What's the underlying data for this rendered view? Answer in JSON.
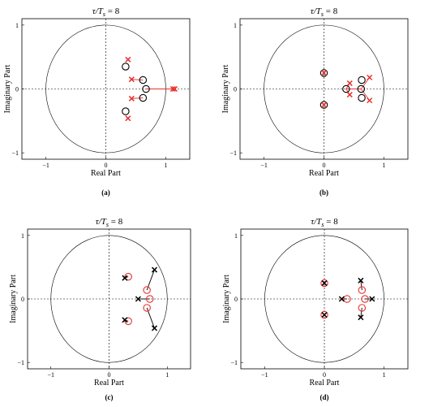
{
  "chart_data": [
    {
      "type": "scatter",
      "panel": "(a)",
      "title_prefix": "τ/T",
      "title_sub": "s",
      "title_suffix": " = 8",
      "xlabel": "Real Part",
      "ylabel": "Imaginary Part",
      "xlim": [
        -1.4,
        1.4
      ],
      "ylim": [
        -1.1,
        1.1
      ],
      "xticks": [
        -1,
        0,
        1
      ],
      "yticks": [
        -1,
        0,
        1
      ],
      "zero_color": "#000000",
      "pole_color": "#e8312f",
      "zeros": [
        [
          0.33,
          0.35
        ],
        [
          0.33,
          -0.35
        ],
        [
          0.62,
          0.14
        ],
        [
          0.62,
          -0.14
        ],
        [
          0.67,
          0.0
        ]
      ],
      "poles": [
        [
          0.37,
          0.46
        ],
        [
          0.37,
          -0.46
        ],
        [
          0.43,
          0.15
        ],
        [
          0.43,
          -0.15
        ],
        [
          1.12,
          0.0
        ],
        [
          1.15,
          0.0
        ]
      ],
      "links": [
        [
          [
            0.62,
            0.14
          ],
          [
            0.43,
            0.15
          ]
        ],
        [
          [
            0.62,
            -0.14
          ],
          [
            0.43,
            -0.15
          ]
        ],
        [
          [
            0.67,
            0.0
          ],
          [
            1.12,
            0.0
          ]
        ]
      ]
    },
    {
      "type": "scatter",
      "panel": "(b)",
      "title_prefix": "τ/T",
      "title_sub": "s",
      "title_suffix": " = 8",
      "xlabel": "Real Part",
      "ylabel": "Imaginary Part",
      "xlim": [
        -1.4,
        1.4
      ],
      "ylim": [
        -1.1,
        1.1
      ],
      "xticks": [
        -1,
        0,
        1
      ],
      "yticks": [
        -1,
        0,
        1
      ],
      "zero_color": "#000000",
      "pole_color": "#e8312f",
      "zeros": [
        [
          0.0,
          0.25
        ],
        [
          0.0,
          -0.25
        ],
        [
          0.37,
          0.0
        ],
        [
          0.63,
          0.14
        ],
        [
          0.63,
          -0.14
        ],
        [
          0.62,
          0.0
        ]
      ],
      "poles": [
        [
          0.0,
          0.25
        ],
        [
          0.0,
          -0.25
        ],
        [
          0.43,
          0.09
        ],
        [
          0.43,
          -0.09
        ],
        [
          0.76,
          0.18
        ],
        [
          0.76,
          -0.18
        ]
      ],
      "links": [
        [
          [
            0.37,
            0.0
          ],
          [
            0.43,
            0.09
          ]
        ],
        [
          [
            0.37,
            0.0
          ],
          [
            0.43,
            -0.09
          ]
        ],
        [
          [
            0.62,
            0.0
          ],
          [
            0.76,
            0.18
          ]
        ],
        [
          [
            0.62,
            0.0
          ],
          [
            0.76,
            -0.18
          ]
        ],
        [
          [
            0.37,
            0.0
          ],
          [
            0.62,
            0.0
          ]
        ]
      ]
    },
    {
      "type": "scatter",
      "panel": "(c)",
      "title_prefix": "τ/T",
      "title_sub": "s",
      "title_suffix": " = 8",
      "xlabel": "Real Part",
      "ylabel": "Imaginary Part",
      "xlim": [
        -1.4,
        1.4
      ],
      "ylim": [
        -1.1,
        1.1
      ],
      "xticks": [
        -1,
        0,
        1
      ],
      "yticks": [
        -1,
        0,
        1
      ],
      "zero_color": "#e8312f",
      "pole_color": "#000000",
      "zeros": [
        [
          0.33,
          0.35
        ],
        [
          0.33,
          -0.35
        ],
        [
          0.65,
          0.14
        ],
        [
          0.65,
          -0.14
        ],
        [
          0.7,
          0.0
        ]
      ],
      "poles": [
        [
          0.27,
          0.33
        ],
        [
          0.27,
          -0.33
        ],
        [
          0.78,
          0.46
        ],
        [
          0.78,
          -0.46
        ],
        [
          0.5,
          0.0
        ]
      ],
      "links": [
        [
          [
            0.65,
            0.14
          ],
          [
            0.78,
            0.46
          ]
        ],
        [
          [
            0.65,
            -0.14
          ],
          [
            0.78,
            -0.46
          ]
        ],
        [
          [
            0.7,
            0.0
          ],
          [
            0.5,
            0.0
          ]
        ],
        [
          [
            0.33,
            0.35
          ],
          [
            0.27,
            0.33
          ]
        ],
        [
          [
            0.33,
            -0.35
          ],
          [
            0.27,
            -0.33
          ]
        ]
      ]
    },
    {
      "type": "scatter",
      "panel": "(d)",
      "title_prefix": "τ/T",
      "title_sub": "s",
      "title_suffix": " = 8",
      "xlabel": "Real Part",
      "ylabel": "Imaginary Part",
      "xlim": [
        -1.4,
        1.4
      ],
      "ylim": [
        -1.1,
        1.1
      ],
      "xticks": [
        -1,
        0,
        1
      ],
      "yticks": [
        -1,
        0,
        1
      ],
      "zero_color": "#e8312f",
      "pole_color": "#000000",
      "zeros": [
        [
          0.0,
          0.25
        ],
        [
          0.0,
          -0.25
        ],
        [
          0.38,
          0.0
        ],
        [
          0.63,
          0.14
        ],
        [
          0.63,
          -0.14
        ],
        [
          0.68,
          0.0
        ]
      ],
      "poles": [
        [
          0.0,
          0.25
        ],
        [
          0.0,
          -0.25
        ],
        [
          0.29,
          0.0
        ],
        [
          0.61,
          0.29
        ],
        [
          0.61,
          -0.29
        ],
        [
          0.8,
          0.0
        ]
      ],
      "links": [
        [
          [
            0.38,
            0.0
          ],
          [
            0.29,
            0.0
          ]
        ],
        [
          [
            0.63,
            0.14
          ],
          [
            0.61,
            0.29
          ]
        ],
        [
          [
            0.63,
            -0.14
          ],
          [
            0.61,
            -0.29
          ]
        ],
        [
          [
            0.68,
            0.0
          ],
          [
            0.8,
            0.0
          ]
        ]
      ]
    }
  ]
}
